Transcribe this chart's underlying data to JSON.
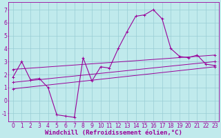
{
  "xlabel": "Windchill (Refroidissement éolien,°C)",
  "xlim": [
    -0.5,
    23.5
  ],
  "ylim": [
    -1.6,
    7.6
  ],
  "yticks": [
    -1,
    0,
    1,
    2,
    3,
    4,
    5,
    6,
    7
  ],
  "xticks": [
    0,
    1,
    2,
    3,
    4,
    5,
    6,
    7,
    8,
    9,
    10,
    11,
    12,
    13,
    14,
    15,
    16,
    17,
    18,
    19,
    20,
    21,
    22,
    23
  ],
  "bg_color": "#c0eaec",
  "grid_color": "#98cdd4",
  "line_color": "#990099",
  "line1_x": [
    0,
    1,
    2,
    3,
    4,
    5,
    6,
    7,
    8,
    9,
    10,
    11,
    12,
    13,
    14,
    15,
    16,
    17,
    18,
    19,
    20,
    21,
    22,
    23
  ],
  "line1_y": [
    1.8,
    3.0,
    1.6,
    1.7,
    1.0,
    -1.1,
    -1.2,
    -1.3,
    3.3,
    1.5,
    2.6,
    2.5,
    4.0,
    5.3,
    6.5,
    6.6,
    7.0,
    6.3,
    4.0,
    3.4,
    3.3,
    3.5,
    2.8,
    2.7
  ],
  "line2_x": [
    0,
    23
  ],
  "line2_y": [
    0.9,
    2.6
  ],
  "line3_x": [
    0,
    23
  ],
  "line3_y": [
    1.4,
    3.0
  ],
  "line4_x": [
    0,
    23
  ],
  "line4_y": [
    2.4,
    3.5
  ],
  "font_size": 5.5,
  "xlabel_fontsize": 6.5
}
